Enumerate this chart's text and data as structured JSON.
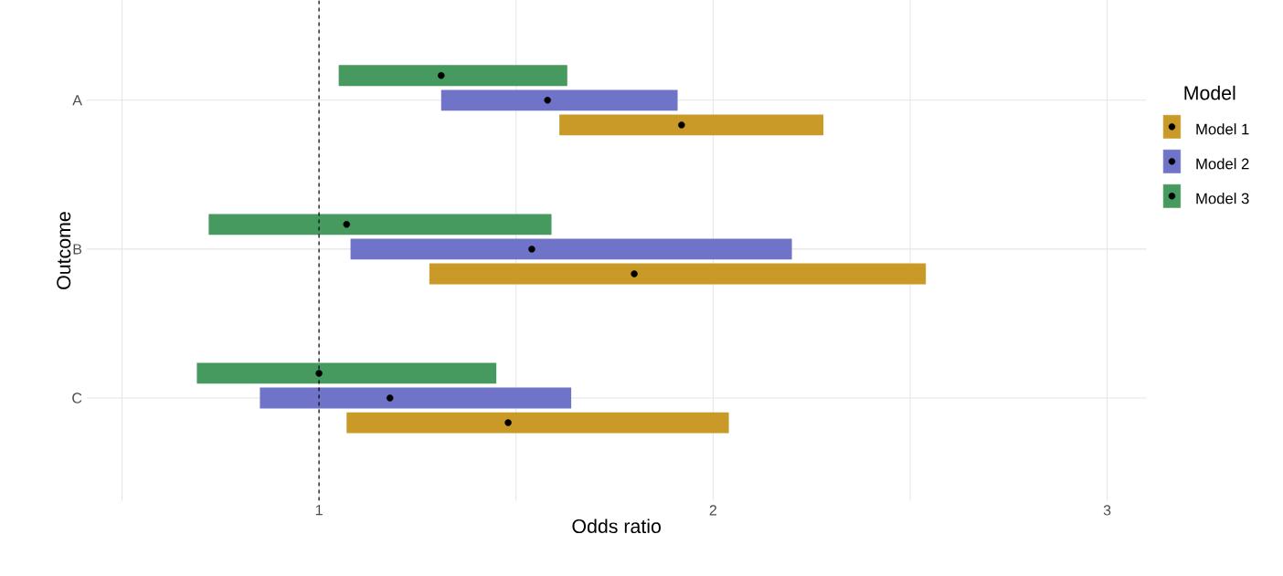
{
  "chart_data": {
    "type": "bar",
    "orientation": "horizontal",
    "xlabel": "Odds ratio",
    "ylabel": "Outcome",
    "legend_title": "Model",
    "categories": [
      "A",
      "B",
      "C"
    ],
    "series": [
      {
        "name": "Model 1",
        "color": "#c99a27",
        "base": [
          1.61,
          1.28,
          1.07
        ],
        "values": [
          0.67,
          1.26,
          0.97
        ]
      },
      {
        "name": "Model 2",
        "color": "#7074c8",
        "base": [
          1.31,
          1.08,
          0.85
        ],
        "values": [
          0.6,
          1.12,
          0.79
        ]
      },
      {
        "name": "Model 3",
        "color": "#479a5f",
        "base": [
          1.05,
          0.72,
          0.69
        ],
        "values": [
          0.58,
          0.87,
          0.76
        ]
      },
      {
        "type": "scatter",
        "color": "#000000",
        "values": [
          1.92,
          1.8,
          1.48
        ]
      },
      {
        "type": "scatter",
        "color": "#000000",
        "values": [
          1.58,
          1.54,
          1.18
        ]
      },
      {
        "type": "scatter",
        "color": "#000000",
        "values": [
          1.31,
          1.07,
          1.0
        ]
      }
    ],
    "marker": "circle",
    "xlim": [
      0.41,
      3.1
    ],
    "xticks": [
      {
        "value": 0.5,
        "label": null
      },
      1,
      {
        "value": 1.5,
        "label": null
      },
      2,
      {
        "value": 2.5,
        "label": null
      },
      3
    ],
    "ref_lines": [
      {
        "axis": "x",
        "value": 1,
        "color": "#000000",
        "line_style": "dashed"
      }
    ],
    "grid": true,
    "legend": "right"
  }
}
